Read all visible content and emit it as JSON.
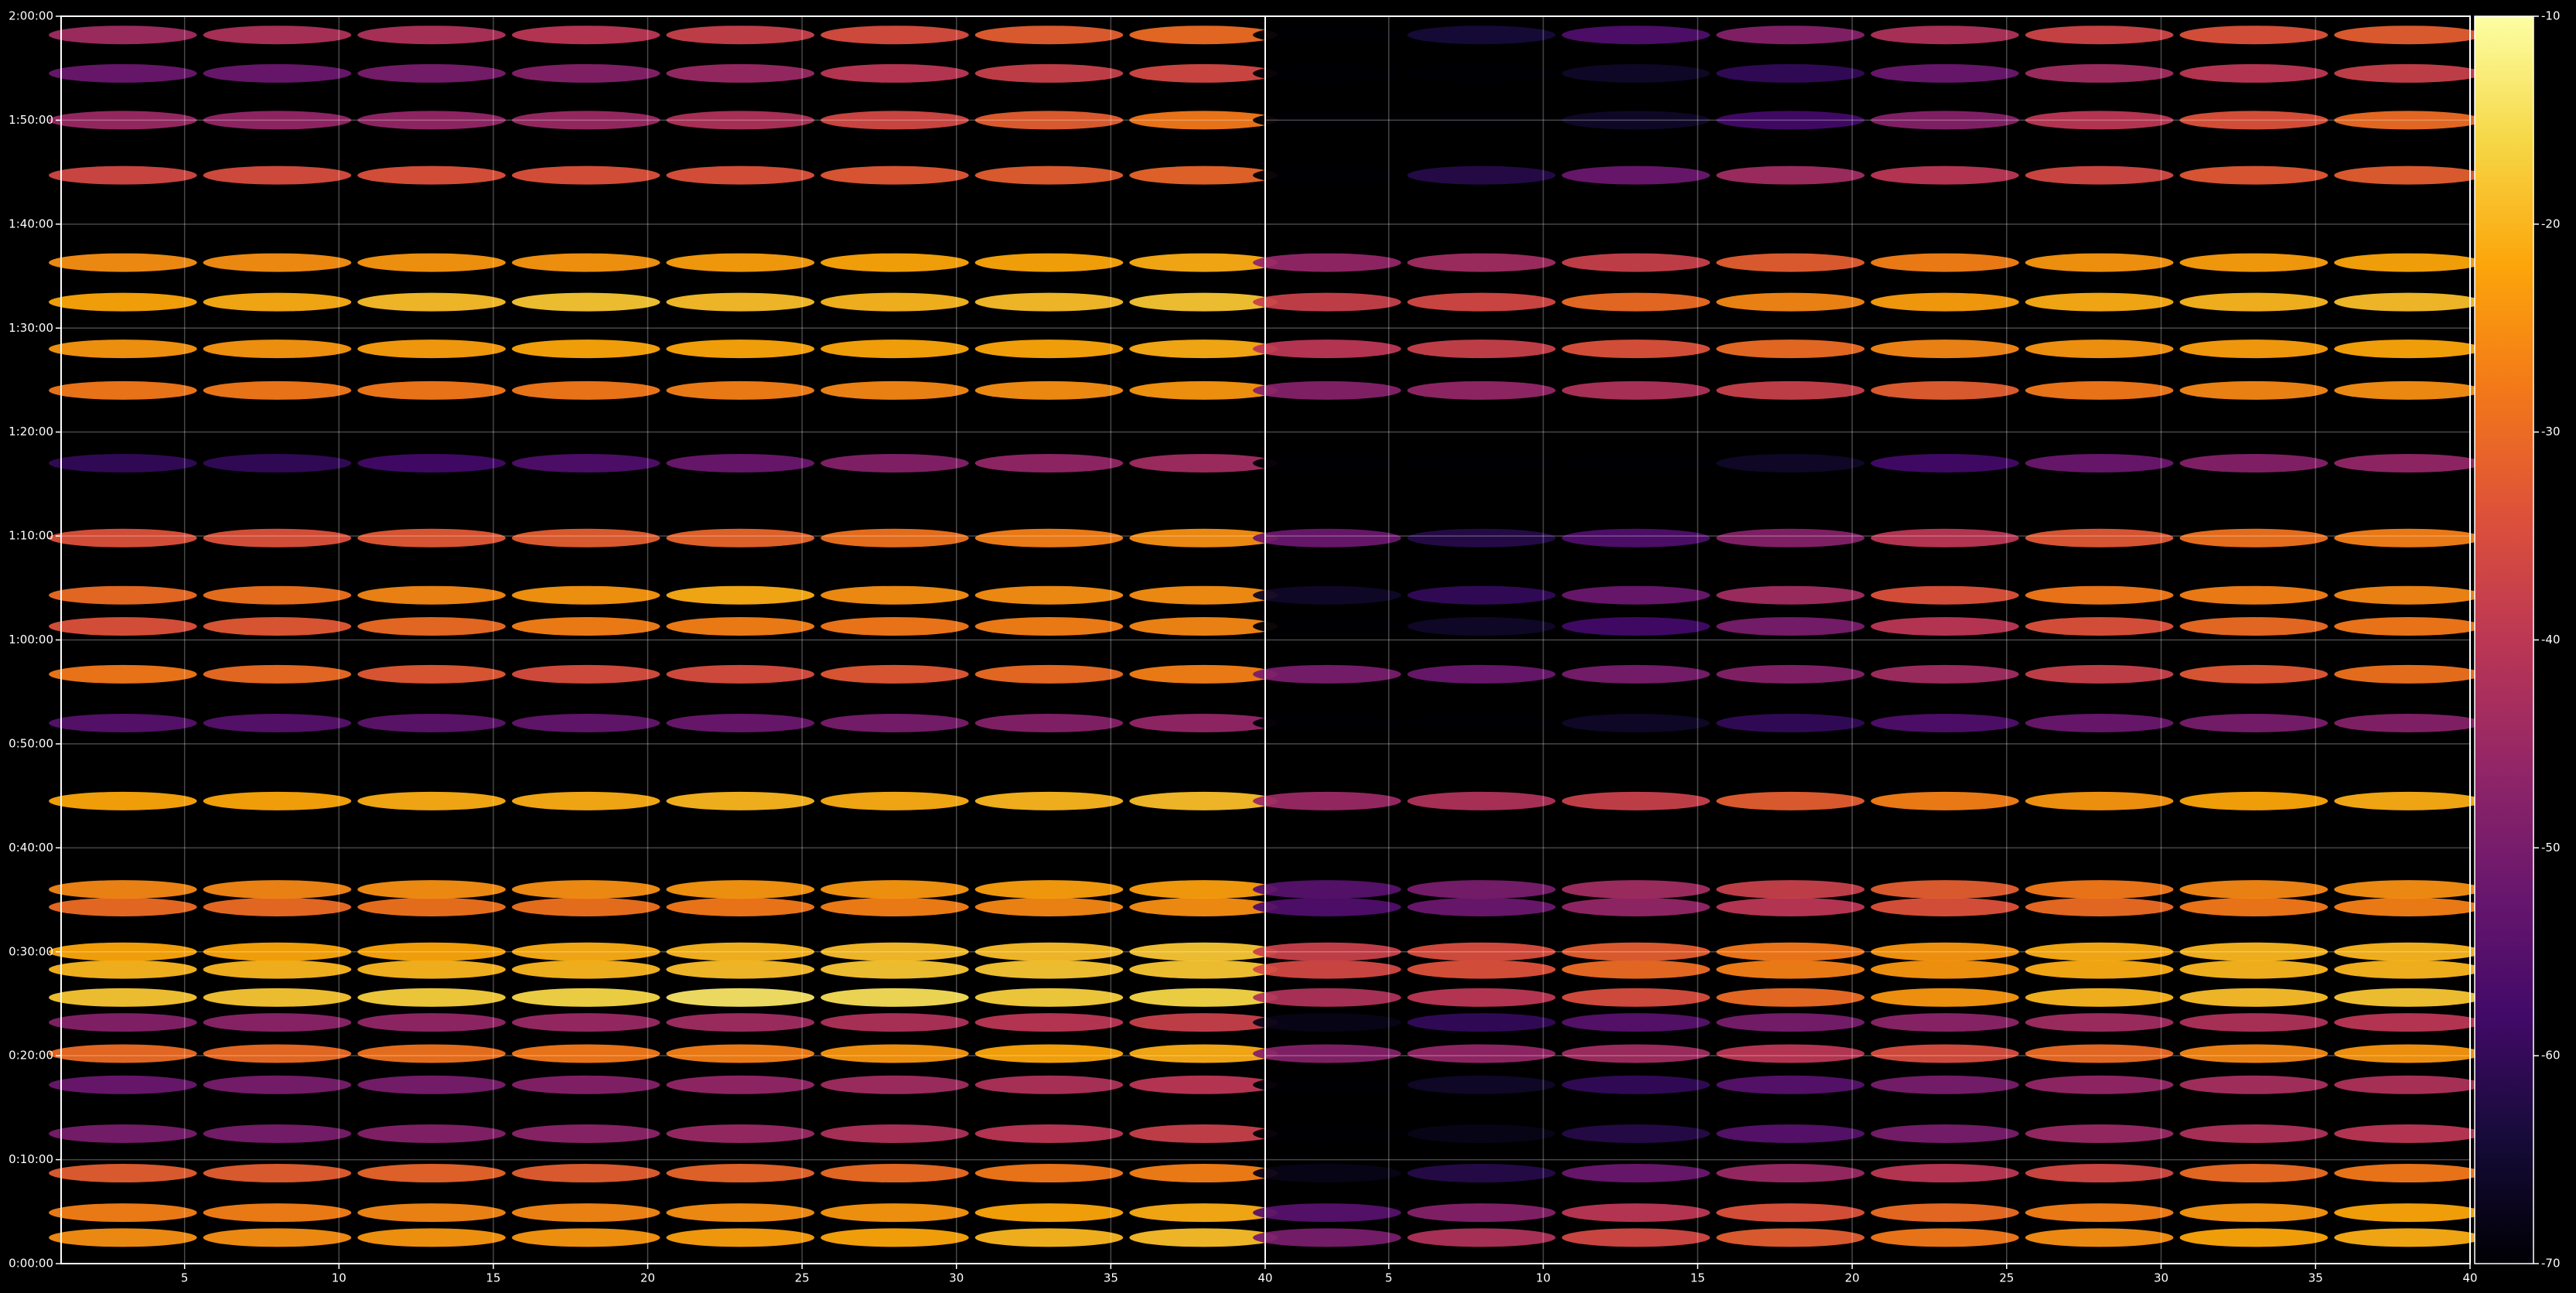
{
  "chart_data": [
    {
      "type": "heatmap",
      "xlim": [
        1,
        40
      ],
      "xticks": [
        5,
        10,
        15,
        20,
        25,
        30,
        35,
        40
      ],
      "ylim": [
        0,
        120
      ],
      "yticks": [
        {
          "value": 0,
          "label": "0:00:00"
        },
        {
          "value": 10,
          "label": "0:10:00"
        },
        {
          "value": 20,
          "label": "0:20:00"
        },
        {
          "value": 30,
          "label": "0:30:00"
        },
        {
          "value": 40,
          "label": "0:40:00"
        },
        {
          "value": 50,
          "label": "0:50:00"
        },
        {
          "value": 60,
          "label": "1:00:00"
        },
        {
          "value": 70,
          "label": "1:10:00"
        },
        {
          "value": 80,
          "label": "1:20:00"
        },
        {
          "value": 90,
          "label": "1:30:00"
        },
        {
          "value": 100,
          "label": "1:40:00"
        },
        {
          "value": 110,
          "label": "1:50:00"
        },
        {
          "value": 120,
          "label": "2:00:00"
        }
      ],
      "grid": true,
      "x": [
        3,
        8,
        13,
        18,
        23,
        28,
        33,
        38
      ],
      "y": [
        2.5,
        4.9,
        8.7,
        12.5,
        17.2,
        20.2,
        23.2,
        25.6,
        28.3,
        30,
        34.3,
        36,
        44.5,
        52,
        56.7,
        61.3,
        64.3,
        69.8,
        77,
        84,
        88,
        92.5,
        96.3,
        104.7,
        110,
        114.5,
        118.2
      ],
      "values": [
        [
          -25,
          -25,
          -24,
          -24,
          -23,
          -22,
          -20,
          -19
        ],
        [
          -27,
          -27,
          -26,
          -26,
          -25,
          -24,
          -22,
          -21
        ],
        [
          -32,
          -32,
          -31,
          -32,
          -31,
          -30,
          -28,
          -27
        ],
        [
          -50,
          -50,
          -48,
          -47,
          -45,
          -42,
          -40,
          -38
        ],
        [
          -52,
          -50,
          -50,
          -48,
          -46,
          -44,
          -42,
          -40
        ],
        [
          -30,
          -30,
          -29,
          -28,
          -27,
          -24,
          -22,
          -21
        ],
        [
          -48,
          -47,
          -46,
          -45,
          -44,
          -42,
          -40,
          -38
        ],
        [
          -18,
          -18,
          -17,
          -16,
          -14,
          -15,
          -17,
          -16
        ],
        [
          -20,
          -20,
          -20,
          -20,
          -19,
          -18,
          -18,
          -18
        ],
        [
          -22,
          -22,
          -22,
          -21,
          -20,
          -19,
          -19,
          -18
        ],
        [
          -30,
          -30,
          -29,
          -29,
          -28,
          -27,
          -26,
          -25
        ],
        [
          -26,
          -26,
          -25,
          -25,
          -24,
          -24,
          -23,
          -23
        ],
        [
          -22,
          -22,
          -21,
          -21,
          -20,
          -21,
          -20,
          -19
        ],
        [
          -55,
          -55,
          -54,
          -53,
          -52,
          -50,
          -48,
          -46
        ],
        [
          -28,
          -30,
          -33,
          -35,
          -35,
          -33,
          -30,
          -27
        ],
        [
          -34,
          -33,
          -30,
          -27,
          -27,
          -28,
          -27,
          -26
        ],
        [
          -30,
          -29,
          -26,
          -24,
          -21,
          -25,
          -25,
          -25
        ],
        [
          -34,
          -34,
          -33,
          -32,
          -31,
          -29,
          -27,
          -25
        ],
        [
          -60,
          -60,
          -58,
          -56,
          -52,
          -48,
          -46,
          -44
        ],
        [
          -28,
          -28,
          -28,
          -28,
          -27,
          -26,
          -25,
          -24
        ],
        [
          -24,
          -24,
          -23,
          -22,
          -22,
          -22,
          -22,
          -21
        ],
        [
          -22,
          -21,
          -19,
          -18,
          -19,
          -20,
          -19,
          -18
        ],
        [
          -25,
          -25,
          -24,
          -24,
          -23,
          -22,
          -22,
          -21
        ],
        [
          -36,
          -35,
          -34,
          -34,
          -34,
          -33,
          -32,
          -31
        ],
        [
          -45,
          -46,
          -46,
          -45,
          -42,
          -36,
          -32,
          -28
        ],
        [
          -52,
          -52,
          -50,
          -48,
          -45,
          -40,
          -38,
          -36
        ],
        [
          -44,
          -42,
          -42,
          -40,
          -38,
          -35,
          -32,
          -30
        ]
      ]
    },
    {
      "type": "heatmap",
      "xlim": [
        1,
        40
      ],
      "xticks": [
        5,
        10,
        15,
        20,
        25,
        30,
        35,
        40
      ],
      "sharey": true,
      "grid": true,
      "x": [
        3,
        8,
        13,
        18,
        23,
        28,
        33,
        38
      ],
      "y": [
        2.5,
        4.9,
        8.7,
        12.5,
        17.2,
        20.2,
        23.2,
        25.6,
        28.3,
        30,
        34.3,
        36,
        44.5,
        52,
        56.7,
        61.3,
        64.3,
        69.8,
        77,
        84,
        88,
        92.5,
        96.3,
        104.7,
        110,
        114.5,
        118.2
      ],
      "values": [
        [
          -50,
          -42,
          -36,
          -32,
          -28,
          -25,
          -22,
          -21
        ],
        [
          -55,
          -48,
          -40,
          -34,
          -30,
          -27,
          -24,
          -22
        ],
        [
          -68,
          -62,
          -52,
          -45,
          -40,
          -36,
          -30,
          -28
        ],
        [
          -70,
          -68,
          -62,
          -55,
          -50,
          -45,
          -42,
          -40
        ],
        [
          -70,
          -66,
          -60,
          -55,
          -50,
          -46,
          -43,
          -42
        ],
        [
          -48,
          -46,
          -44,
          -40,
          -35,
          -30,
          -26,
          -24
        ],
        [
          -68,
          -60,
          -55,
          -50,
          -47,
          -44,
          -42,
          -40
        ],
        [
          -42,
          -40,
          -35,
          -30,
          -24,
          -20,
          -19,
          -18
        ],
        [
          -36,
          -34,
          -30,
          -27,
          -24,
          -21,
          -20,
          -20
        ],
        [
          -38,
          -35,
          -32,
          -28,
          -24,
          -21,
          -20,
          -20
        ],
        [
          -56,
          -52,
          -46,
          -40,
          -34,
          -30,
          -28,
          -27
        ],
        [
          -55,
          -50,
          -44,
          -38,
          -32,
          -28,
          -26,
          -25
        ],
        [
          -45,
          -42,
          -38,
          -32,
          -27,
          -24,
          -22,
          -21
        ],
        [
          -70,
          -70,
          -66,
          -60,
          -56,
          -52,
          -50,
          -48
        ],
        [
          -50,
          -52,
          -50,
          -48,
          -44,
          -38,
          -33,
          -29
        ],
        [
          -70,
          -66,
          -58,
          -50,
          -40,
          -34,
          -30,
          -28
        ],
        [
          -66,
          -60,
          -52,
          -44,
          -34,
          -28,
          -27,
          -26
        ],
        [
          -52,
          -62,
          -56,
          -48,
          -40,
          -33,
          -29,
          -27
        ],
        [
          -70,
          -70,
          -70,
          -66,
          -58,
          -52,
          -48,
          -46
        ],
        [
          -48,
          -46,
          -42,
          -38,
          -32,
          -28,
          -26,
          -25
        ],
        [
          -40,
          -38,
          -34,
          -30,
          -26,
          -24,
          -23,
          -22
        ],
        [
          -38,
          -36,
          -30,
          -26,
          -23,
          -21,
          -20,
          -19
        ],
        [
          -46,
          -44,
          -38,
          -32,
          -27,
          -24,
          -23,
          -22
        ],
        [
          -70,
          -62,
          -52,
          -44,
          -40,
          -36,
          -33,
          -32
        ],
        [
          -70,
          -70,
          -66,
          -58,
          -48,
          -40,
          -34,
          -30
        ],
        [
          -70,
          -70,
          -66,
          -60,
          -52,
          -44,
          -40,
          -38
        ],
        [
          -70,
          -64,
          -56,
          -48,
          -42,
          -37,
          -34,
          -32
        ]
      ]
    }
  ],
  "colorbar": {
    "lim": [
      -70,
      -10
    ],
    "ticks": [
      -70,
      -60,
      -50,
      -40,
      -30,
      -20,
      -10
    ],
    "colormap": "inferno"
  }
}
